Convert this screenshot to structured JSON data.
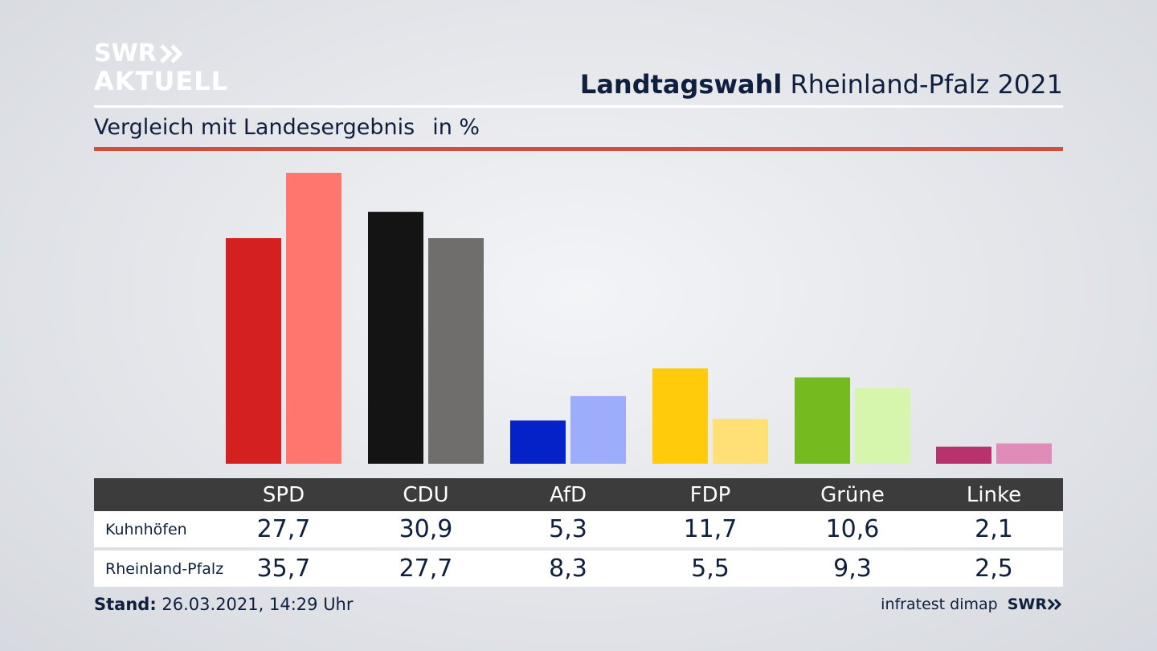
{
  "brand": {
    "logo_line1": "SWR",
    "logo_line2": "AKTUELL",
    "footer_logo": "SWR"
  },
  "header": {
    "title_bold": "Landtagswahl",
    "title_rest": "Rheinland-Pfalz 2021",
    "subtitle": "Vergleich mit Landesergebnis",
    "unit": "in %"
  },
  "table": {
    "rows": [
      {
        "label": "Kuhnhöfen",
        "values": [
          "27,7",
          "30,9",
          "5,3",
          "11,7",
          "10,6",
          "2,1"
        ]
      },
      {
        "label": "Rheinland-Pfalz",
        "values": [
          "35,7",
          "27,7",
          "8,3",
          "5,5",
          "9,3",
          "2,5"
        ]
      }
    ]
  },
  "footer": {
    "stand_label": "Stand:",
    "stand_value": "26.03.2021, 14:29 Uhr",
    "source": "infratest dimap"
  },
  "colors": {
    "accent_rule": "#cf4e3d",
    "table_header": "#3c3c3c",
    "SPD": [
      "#d42020",
      "#ff766f"
    ],
    "CDU": [
      "#141414",
      "#6f6e6c"
    ],
    "AfD": [
      "#0422c7",
      "#9dadfc"
    ],
    "FDP": [
      "#ffcb0b",
      "#ffe074"
    ],
    "Grüne": [
      "#73bb1e",
      "#d6f6ad"
    ],
    "Linke": [
      "#b8326e",
      "#e08cb8"
    ]
  },
  "chart_data": {
    "type": "bar",
    "categories": [
      "SPD",
      "CDU",
      "AfD",
      "FDP",
      "Grüne",
      "Linke"
    ],
    "series": [
      {
        "name": "Kuhnhöfen",
        "values": [
          27.7,
          30.9,
          5.3,
          11.7,
          10.6,
          2.1
        ]
      },
      {
        "name": "Rheinland-Pfalz",
        "values": [
          35.7,
          27.7,
          8.3,
          5.5,
          9.3,
          2.5
        ]
      }
    ],
    "title": "Landtagswahl Rheinland-Pfalz 2021",
    "subtitle": "Vergleich mit Landesergebnis",
    "ylabel": "in %",
    "ylim": [
      0,
      35.7
    ],
    "grid": false,
    "legend": "table-below"
  }
}
